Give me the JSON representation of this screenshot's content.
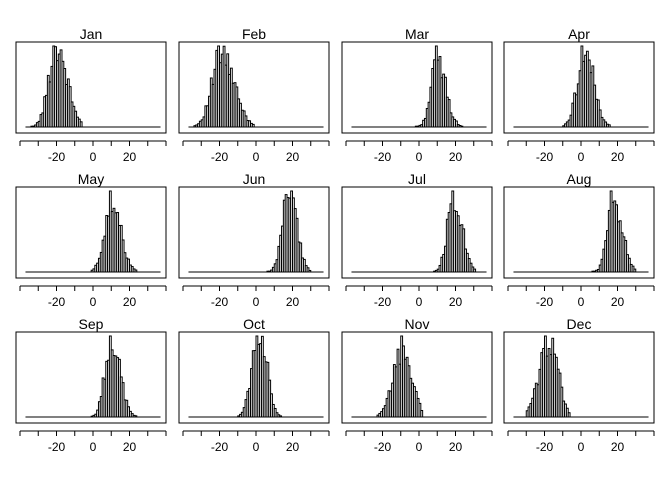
{
  "chart_data": {
    "type": "bar",
    "layout": "3x4 small multiples",
    "shared_x_axis": {
      "xlim": [
        -40,
        40
      ],
      "ticks": [
        -20,
        0,
        20
      ]
    },
    "bin_width": 1,
    "panels": [
      {
        "title": "Jan",
        "center": -20,
        "spread": 5.0,
        "skew": 0.3,
        "x_range": [
          -34,
          -6
        ]
      },
      {
        "title": "Feb",
        "center": -19,
        "spread": 6.0,
        "skew": 0.3,
        "x_range": [
          -34,
          -1
        ]
      },
      {
        "title": "Mar",
        "center": 10,
        "spread": 4.0,
        "skew": 0.3,
        "x_range": [
          -2,
          24
        ]
      },
      {
        "title": "Apr",
        "center": 2,
        "spread": 4.5,
        "skew": 0.2,
        "x_range": [
          -10,
          16
        ]
      },
      {
        "title": "May",
        "center": 10,
        "spread": 4.5,
        "skew": 0.3,
        "x_range": [
          -1,
          24
        ]
      },
      {
        "title": "Jun",
        "center": 18,
        "spread": 3.8,
        "skew": 0.2,
        "x_range": [
          6,
          30
        ]
      },
      {
        "title": "Jul",
        "center": 19,
        "spread": 4.0,
        "skew": 0.3,
        "x_range": [
          8,
          31
        ]
      },
      {
        "title": "Aug",
        "center": 18,
        "spread": 4.0,
        "skew": 0.3,
        "x_range": [
          6,
          30
        ]
      },
      {
        "title": "Sep",
        "center": 10,
        "spread": 4.0,
        "skew": 0.3,
        "x_range": [
          -1,
          24
        ]
      },
      {
        "title": "Oct",
        "center": 2,
        "spread": 4.0,
        "skew": 0.0,
        "x_range": [
          -10,
          14
        ]
      },
      {
        "title": "Nov",
        "center": -9,
        "spread": 5.0,
        "skew": 0.0,
        "x_range": [
          -23,
          2
        ]
      },
      {
        "title": "Dec",
        "center": -17,
        "spread": 5.0,
        "skew": -0.2,
        "x_range": [
          -30,
          -6
        ]
      }
    ]
  }
}
